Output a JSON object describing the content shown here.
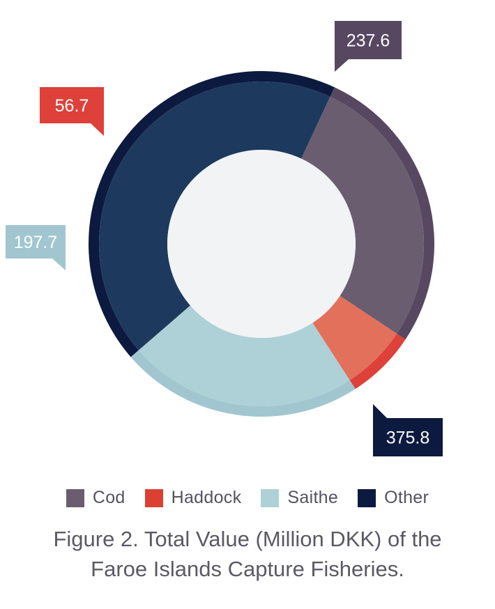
{
  "chart_data": {
    "type": "pie",
    "variant": "donut",
    "title": "",
    "categories": [
      "Cod",
      "Haddock",
      "Saithe",
      "Other"
    ],
    "values": [
      237.6,
      56.7,
      197.7,
      375.8
    ],
    "value_labels": [
      "237.6",
      "56.7",
      "197.7",
      "375.8"
    ],
    "colors": {
      "Cod": "#6b5d70",
      "Haddock": "#e2705a",
      "Saithe": "#aed0d7",
      "Other": "#1d3a5e"
    },
    "edge_colors": {
      "Cod": "#574760",
      "Haddock": "#dd4139",
      "Saithe": "#a1c6cf",
      "Other": "#0c1a3f"
    },
    "legend": {
      "placement": "bottom",
      "items": [
        {
          "label": "Cod",
          "color": "#6b5d70"
        },
        {
          "label": "Haddock",
          "color": "#db4133"
        },
        {
          "label": "Saithe",
          "color": "#aed0d7"
        },
        {
          "label": "Other",
          "color": "#0c1a3f"
        }
      ]
    },
    "center_color": "#f1f3f5"
  },
  "caption": {
    "line1": "Figure 2. Total Value (Million DKK) of the",
    "line2": "Faroe Islands Capture Fisheries."
  }
}
